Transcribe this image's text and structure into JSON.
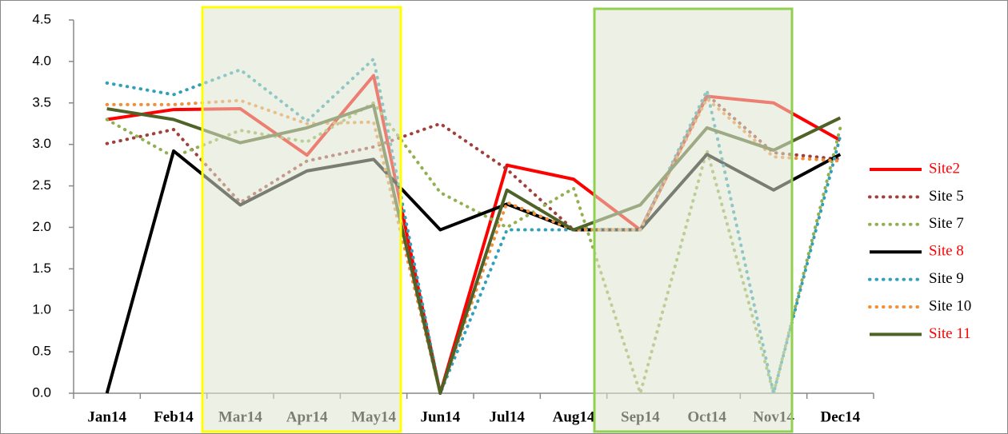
{
  "chart_data": {
    "type": "line",
    "categories": [
      "Jan14",
      "Feb14",
      "Mar14",
      "Apr14",
      "May14",
      "Jun14",
      "Jul14",
      "Aug14",
      "Sep14",
      "Oct14",
      "Nov14",
      "Dec14"
    ],
    "series": [
      {
        "name": "Site2",
        "color": "#ff0000",
        "dash": false,
        "legend_text_color": "#ff0000",
        "values": [
          3.3,
          3.42,
          3.43,
          2.87,
          3.83,
          0,
          2.75,
          2.58,
          1.97,
          3.58,
          3.5,
          3.05
        ]
      },
      {
        "name": "Site 5",
        "color": "#a0403c",
        "dash": true,
        "legend_text_color": "#000000",
        "values": [
          3.01,
          3.18,
          2.3,
          2.8,
          2.97,
          3.25,
          2.7,
          1.97,
          1.97,
          3.6,
          2.9,
          2.82
        ]
      },
      {
        "name": "Site 7",
        "color": "#92b050",
        "dash": true,
        "legend_text_color": "#000000",
        "values": [
          3.3,
          2.85,
          3.17,
          3.03,
          3.5,
          2.42,
          2.0,
          2.47,
          0,
          2.93,
          0,
          3.2
        ]
      },
      {
        "name": "Site 8",
        "color": "#000000",
        "dash": false,
        "legend_text_color": "#ff0000",
        "values": [
          0,
          2.92,
          2.27,
          2.68,
          2.82,
          1.97,
          2.28,
          1.97,
          1.97,
          2.88,
          2.45,
          2.88
        ]
      },
      {
        "name": "Site 9",
        "color": "#31a0b8",
        "dash": true,
        "legend_text_color": "#000000",
        "values": [
          3.74,
          3.6,
          3.9,
          3.28,
          4.03,
          0,
          1.97,
          1.97,
          1.97,
          3.65,
          0,
          3.1
        ]
      },
      {
        "name": "Site 10",
        "color": "#f0903c",
        "dash": true,
        "legend_text_color": "#000000",
        "values": [
          3.48,
          3.48,
          3.53,
          3.25,
          3.27,
          0,
          2.3,
          1.97,
          1.97,
          3.55,
          2.85,
          2.8
        ]
      },
      {
        "name": "Site 11",
        "color": "#4f6228",
        "dash": false,
        "legend_text_color": "#ff0000",
        "values": [
          3.43,
          3.3,
          3.02,
          3.2,
          3.47,
          0,
          2.45,
          1.97,
          2.27,
          3.2,
          2.93,
          3.32
        ]
      }
    ],
    "ylim": [
      0,
      4.5
    ],
    "yticks": [
      {
        "value": 0,
        "label": "0.0"
      },
      {
        "value": 0.5,
        "label": "0.5"
      },
      {
        "value": 1,
        "label": "1.0"
      },
      {
        "value": 1.5,
        "label": "1.5"
      },
      {
        "value": 2,
        "label": "2.0"
      },
      {
        "value": 2.5,
        "label": "2.5"
      },
      {
        "value": 3,
        "label": "3.0"
      },
      {
        "value": 3.5,
        "label": "3.5"
      },
      {
        "value": 4,
        "label": "4.0"
      },
      {
        "value": 4.5,
        "label": "4.5"
      }
    ],
    "grid": false,
    "legend": "right"
  }
}
